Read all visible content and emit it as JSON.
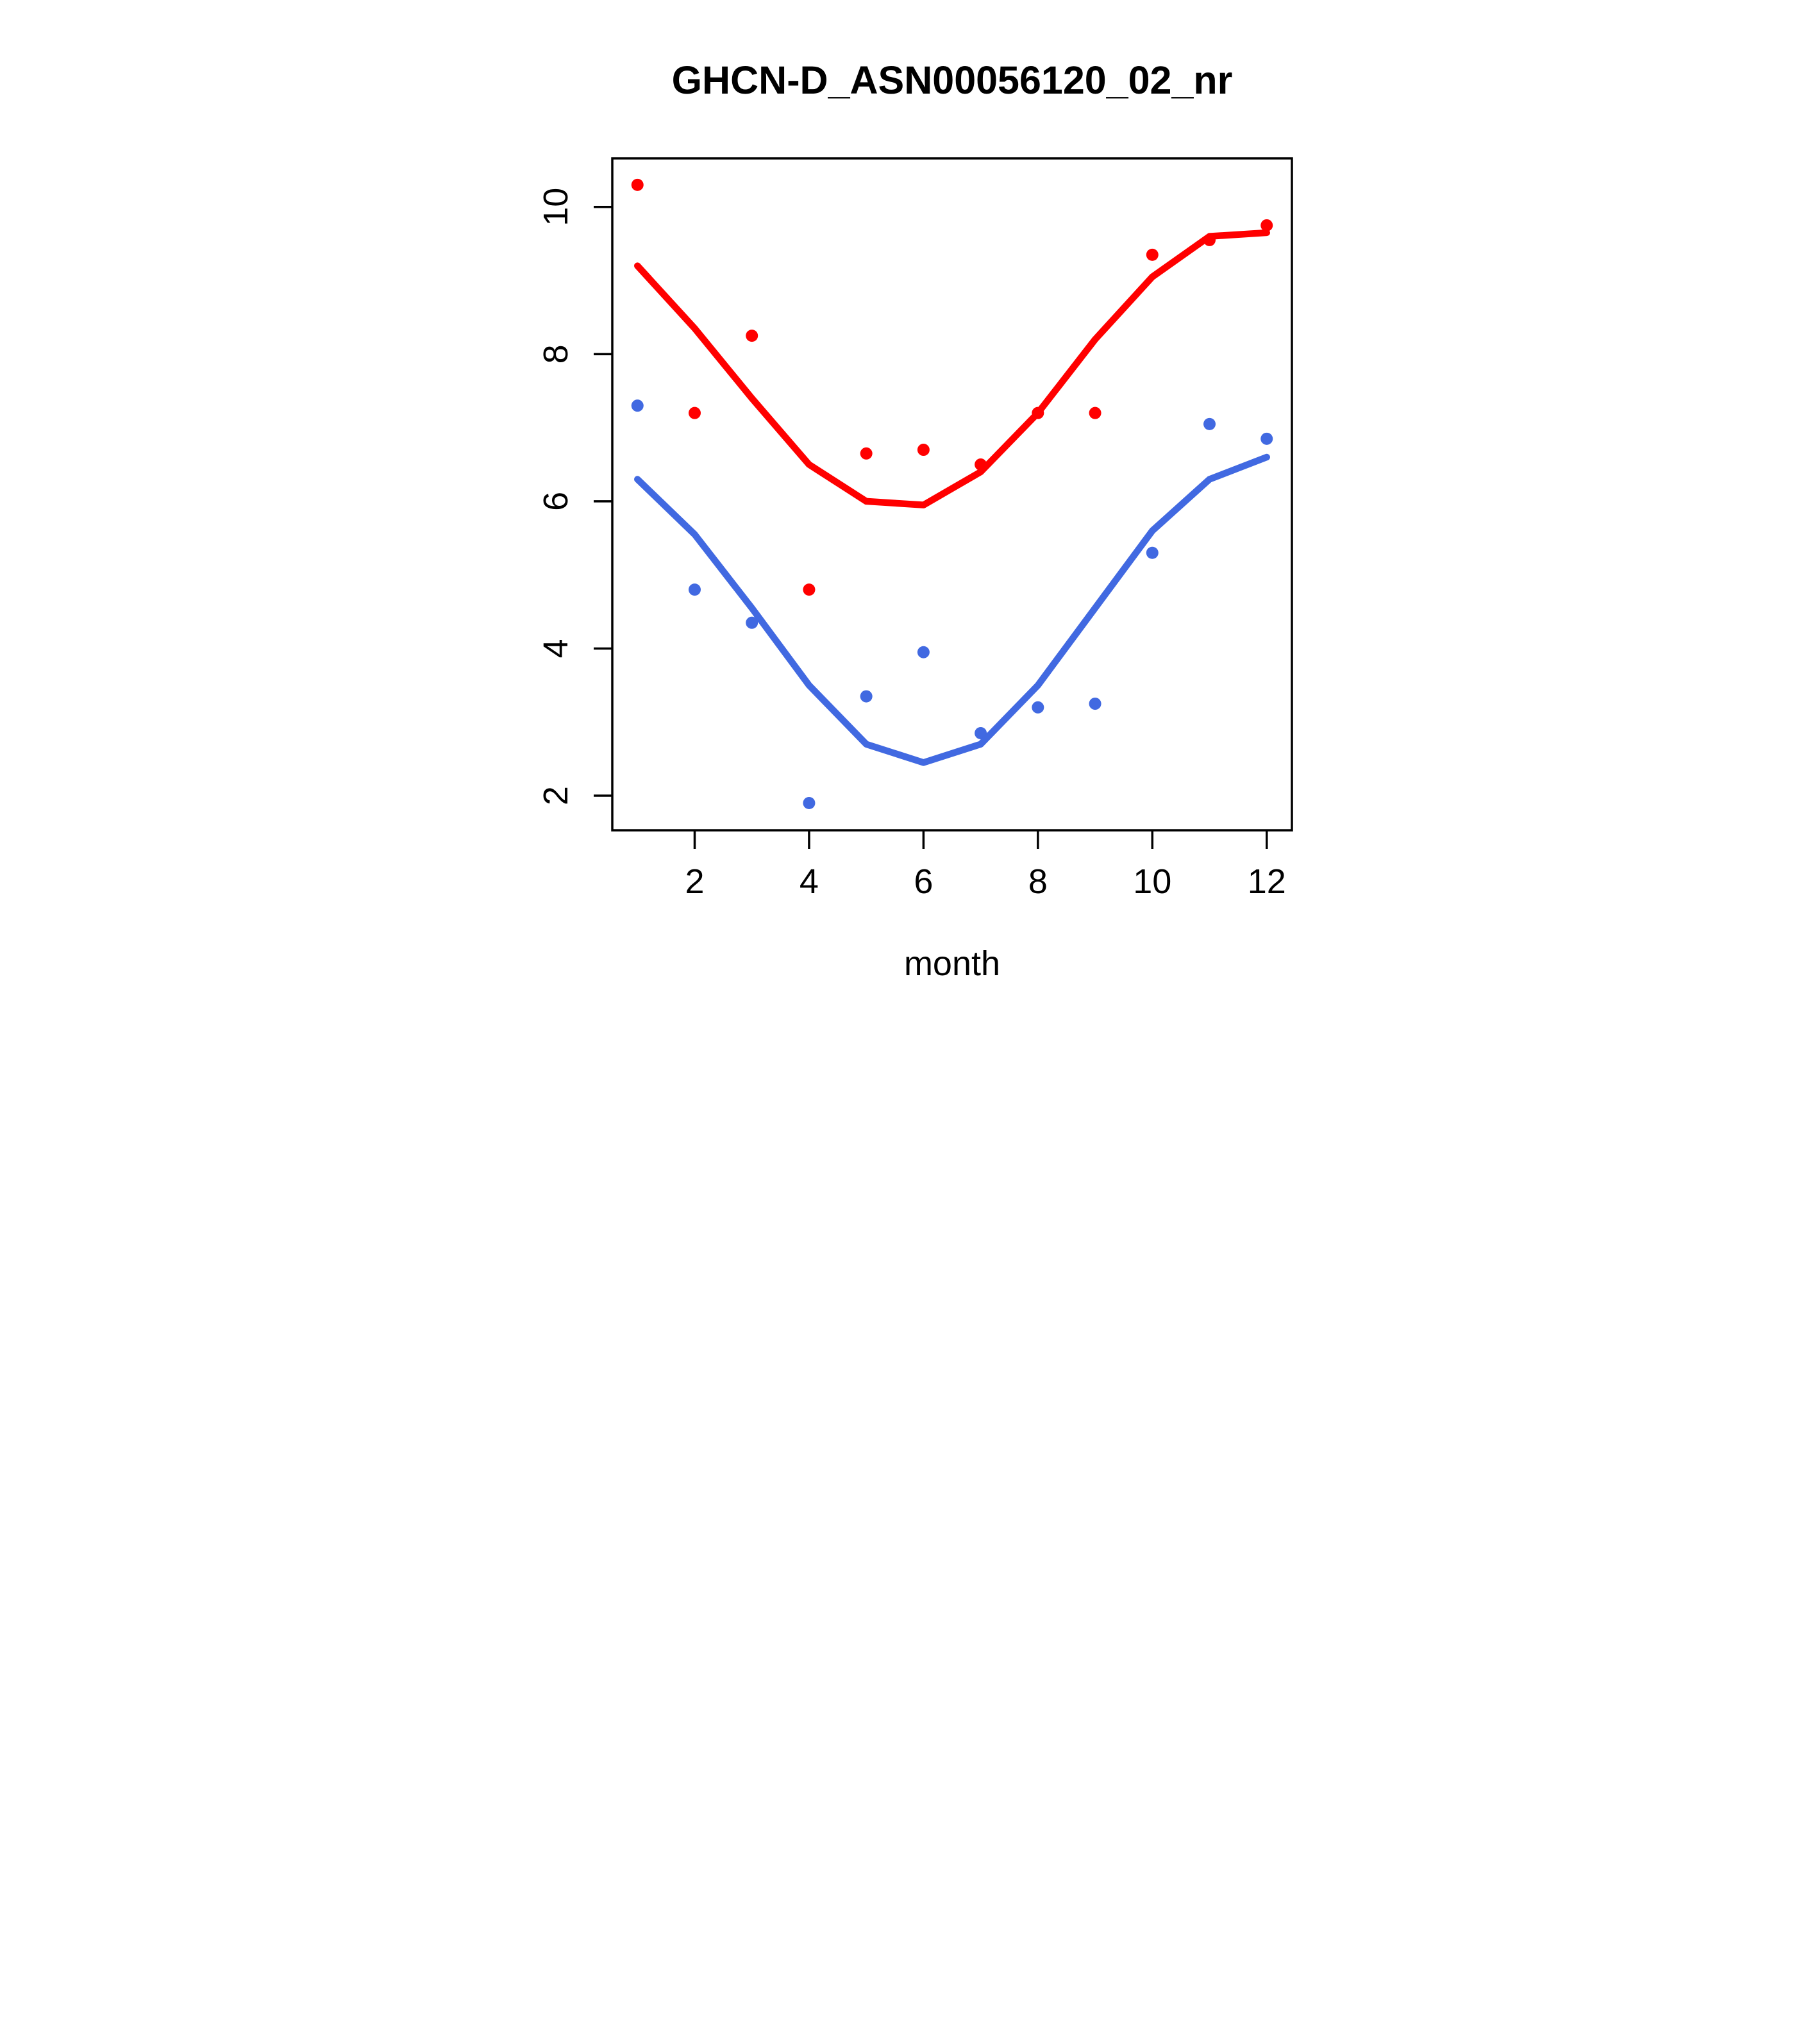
{
  "chart_data": {
    "type": "scatter",
    "title": "GHCN-D_ASN00056120_02_nr",
    "xlabel": "month",
    "ylabel": "",
    "x": [
      1,
      2,
      3,
      4,
      5,
      6,
      7,
      8,
      9,
      10,
      11,
      12
    ],
    "xlim": [
      0.56,
      12.44
    ],
    "ylim": [
      1.53,
      10.66
    ],
    "x_ticks": [
      2,
      4,
      6,
      8,
      10,
      12
    ],
    "x_tick_labels": [
      "2",
      "4",
      "6",
      "8",
      "10",
      "12"
    ],
    "y_ticks": [
      2,
      4,
      6,
      8,
      10
    ],
    "y_tick_labels": [
      "2",
      "4",
      "6",
      "8",
      "10"
    ],
    "grid": false,
    "legend": "none",
    "colors": {
      "red_series": "#ff0000",
      "blue_series": "#4169e1",
      "axis": "#000000",
      "background": "#ffffff"
    },
    "series": [
      {
        "name": "red-points",
        "draw": "points",
        "color": "#ff0000",
        "values": [
          10.3,
          7.2,
          8.25,
          4.8,
          6.65,
          6.7,
          6.5,
          7.2,
          7.2,
          9.35,
          9.55,
          9.75
        ]
      },
      {
        "name": "blue-points",
        "draw": "points",
        "color": "#4169e1",
        "values": [
          7.3,
          4.8,
          4.35,
          1.9,
          3.35,
          3.95,
          2.85,
          3.2,
          3.25,
          5.3,
          7.05,
          6.85
        ]
      },
      {
        "name": "red-smooth-line",
        "draw": "line",
        "color": "#ff0000",
        "values": [
          9.2,
          8.35,
          7.4,
          6.5,
          6.0,
          5.95,
          6.4,
          7.2,
          8.2,
          9.05,
          9.6,
          9.65
        ]
      },
      {
        "name": "blue-smooth-line",
        "draw": "line",
        "color": "#4169e1",
        "values": [
          6.3,
          5.55,
          4.55,
          3.5,
          2.7,
          2.45,
          2.7,
          3.5,
          4.55,
          5.6,
          6.3,
          6.6
        ]
      }
    ]
  }
}
